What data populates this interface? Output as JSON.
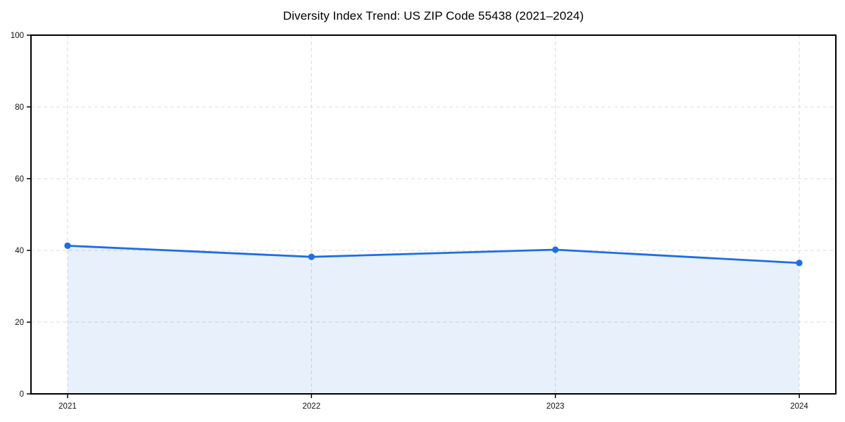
{
  "chart_data": {
    "type": "area",
    "title": "Diversity Index Trend: US ZIP Code 55438 (2021–2024)",
    "x": [
      2021,
      2022,
      2023,
      2024
    ],
    "values": [
      41.3,
      38.2,
      40.2,
      36.5
    ],
    "x_tick_labels": [
      "2021",
      "2022",
      "2023",
      "2024"
    ],
    "y_ticks": [
      0,
      20,
      40,
      60,
      80,
      100
    ],
    "xlim": [
      2020.85,
      2024.15
    ],
    "ylim": [
      0,
      100
    ],
    "xlabel": "",
    "ylabel": "",
    "grid": true,
    "grid_style": "dashed",
    "legend_position": "none",
    "marker": "circle",
    "colors": {
      "line": "#1f6ee0",
      "marker": "#1f6ee0",
      "fill": "rgba(31,110,224,0.10)",
      "grid": "#dcdcdc",
      "axis": "#000000",
      "tick_label": "#111111",
      "title": "#000000",
      "background": "#ffffff"
    }
  }
}
